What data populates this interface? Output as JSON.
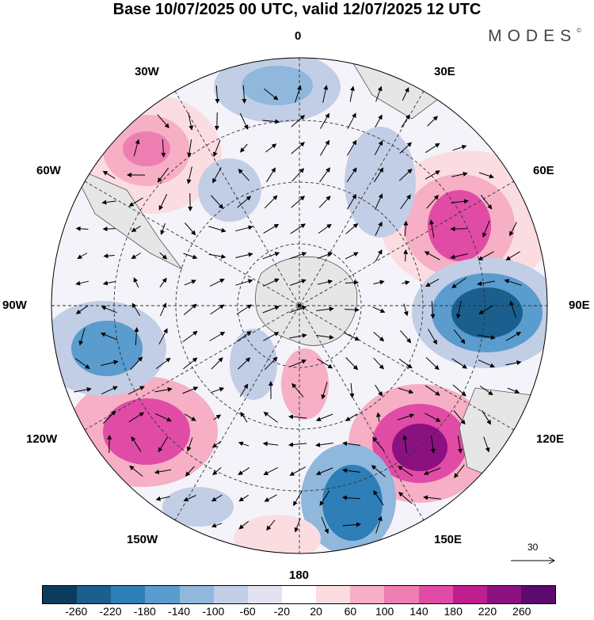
{
  "title": "Base 10/07/2025 00 UTC, valid 12/07/2025 12 UTC",
  "brand": "MODES",
  "brand_mark": "©",
  "map": {
    "projection": "south-polar-stereographic",
    "longitude_labels": {
      "lon_0": "0",
      "lon_30e": "30E",
      "lon_60e": "60E",
      "lon_90e": "90E",
      "lon_120e": "120E",
      "lon_150e": "150E",
      "lon_180": "180",
      "lon_150w": "150W",
      "lon_120w": "120W",
      "lon_90w": "90W",
      "lon_60w": "60W",
      "lon_30w": "30W"
    },
    "graticule": "dashed",
    "wind_vectors": true
  },
  "reference_vector": {
    "value": "30"
  },
  "colorbar": {
    "colors": [
      "#0b3c5d",
      "#1a5f8e",
      "#2e7eb8",
      "#5a9ccd",
      "#90b7dc",
      "#c2cde6",
      "#e4e2f0",
      "#ffffff",
      "#fbdde1",
      "#f6afc4",
      "#ee7db2",
      "#e04ca5",
      "#bf1e8f",
      "#8b1181",
      "#5c0a6e"
    ],
    "tick_labels": [
      "-260",
      "-220",
      "-180",
      "-140",
      "-100",
      "-60",
      "-20",
      "20",
      "60",
      "100",
      "140",
      "180",
      "220",
      "260"
    ]
  }
}
